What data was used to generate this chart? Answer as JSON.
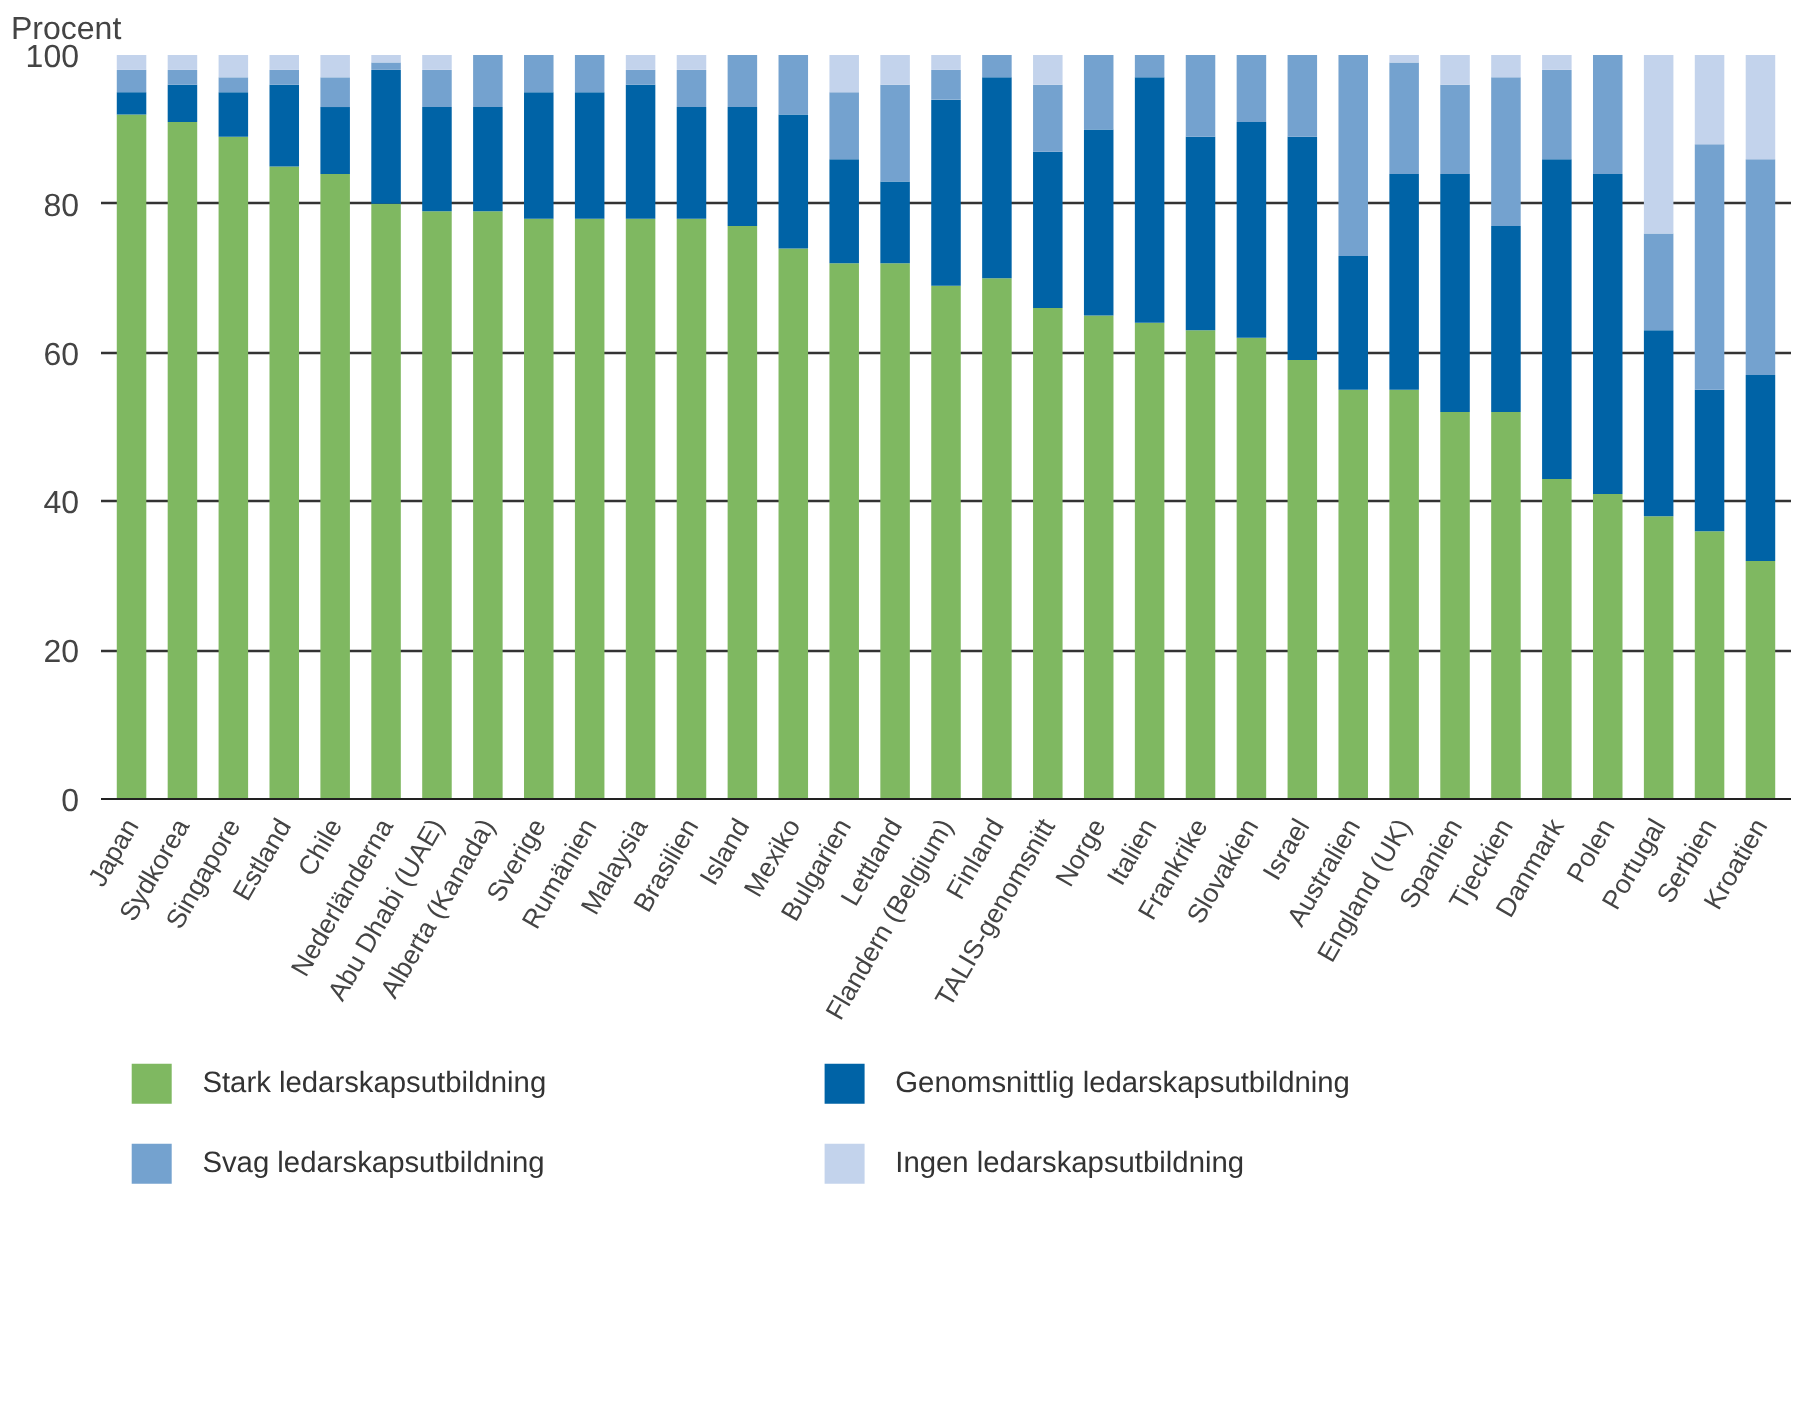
{
  "chart_data": {
    "type": "bar",
    "stacked": true,
    "ylabel": "Procent",
    "ylim": [
      0,
      100
    ],
    "yticks": [
      0,
      20,
      40,
      60,
      80,
      100
    ],
    "grid": "y",
    "legend": "bottom",
    "categories": [
      "Japan",
      "Sydkorea",
      "Singapore",
      "Estland",
      "Chile",
      "Nederländerna",
      "Abu Dhabi (UAE)",
      "Alberta (Kanada)",
      "Sverige",
      "Rumänien",
      "Malaysia",
      "Brasilien",
      "Island",
      "Mexiko",
      "Bulgarien",
      "Lettland",
      "Flandern (Belgium)",
      "Finland",
      "TALIS-genomsnitt",
      "Norge",
      "Italien",
      "Frankrike",
      "Slovakien",
      "Israel",
      "Australien",
      "England (UK)",
      "Spanien",
      "Tjeckien",
      "Danmark",
      "Polen",
      "Portugal",
      "Serbien",
      "Kroatien"
    ],
    "series": [
      {
        "name": "Stark ledarskapsutbildning",
        "color": "#7fb861",
        "values": [
          92,
          91,
          89,
          85,
          84,
          80,
          79,
          79,
          78,
          78,
          78,
          78,
          77,
          74,
          72,
          72,
          69,
          70,
          66,
          65,
          64,
          63,
          62,
          59,
          55,
          55,
          52,
          52,
          43,
          41,
          38,
          36,
          32
        ]
      },
      {
        "name": "Genomsnittlig ledarskapsutbildning",
        "color": "#0063a6",
        "values": [
          3,
          5,
          6,
          11,
          9,
          18,
          14,
          14,
          17,
          17,
          18,
          15,
          16,
          18,
          14,
          11,
          25,
          27,
          21,
          25,
          33,
          26,
          29,
          30,
          18,
          29,
          32,
          25,
          43,
          43,
          25,
          19,
          25
        ]
      },
      {
        "name": "Svag ledarskapsutbildning",
        "color": "#74a2cf",
        "values": [
          3,
          2,
          2,
          2,
          4,
          1,
          5,
          7,
          5,
          5,
          2,
          5,
          7,
          8,
          9,
          13,
          4,
          3,
          9,
          10,
          3,
          11,
          9,
          11,
          27,
          15,
          12,
          20,
          12,
          16,
          13,
          33,
          29
        ]
      },
      {
        "name": "Ingen ledarskapsutbildning",
        "color": "#c3d3ec",
        "values": [
          2,
          2,
          3,
          2,
          3,
          1,
          2,
          0,
          0,
          0,
          2,
          2,
          0,
          0,
          5,
          4,
          2,
          0,
          4,
          0,
          0,
          0,
          0,
          0,
          0,
          1,
          4,
          3,
          2,
          0,
          24,
          12,
          14
        ]
      }
    ]
  }
}
